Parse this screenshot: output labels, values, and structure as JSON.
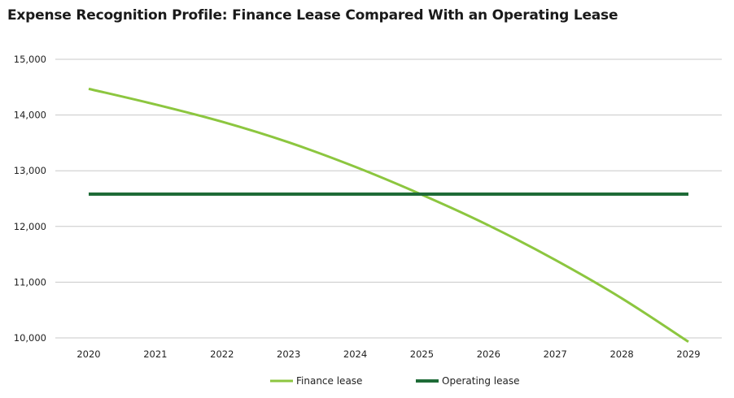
{
  "colors": {
    "finance": "#8cc63f",
    "operating": "#1e6b37",
    "grid": "#c8c8c8",
    "text": "#222222"
  },
  "chart_data": {
    "type": "line",
    "title": "Expense Recognition Profile: Finance Lease Compared With an Operating Lease",
    "xlabel": "",
    "ylabel": "",
    "categories": [
      "2020",
      "2021",
      "2022",
      "2023",
      "2024",
      "2025",
      "2026",
      "2027",
      "2028",
      "2029"
    ],
    "ylim": [
      10000,
      15000
    ],
    "yticks": [
      10000,
      11000,
      12000,
      13000,
      14000,
      15000
    ],
    "ytick_labels": [
      "10,000",
      "11,000",
      "12,000",
      "13,000",
      "14,000",
      "15,000"
    ],
    "grid": true,
    "legend_position": "bottom-center",
    "series": [
      {
        "name": "Finance lease",
        "color_key": "finance",
        "values": [
          14470,
          14190,
          13880,
          13510,
          13070,
          12570,
          12020,
          11400,
          10710,
          9930
        ]
      },
      {
        "name": "Operating lease",
        "color_key": "operating",
        "values": [
          12580,
          12580,
          12580,
          12580,
          12580,
          12580,
          12580,
          12580,
          12580,
          12580
        ]
      }
    ]
  }
}
